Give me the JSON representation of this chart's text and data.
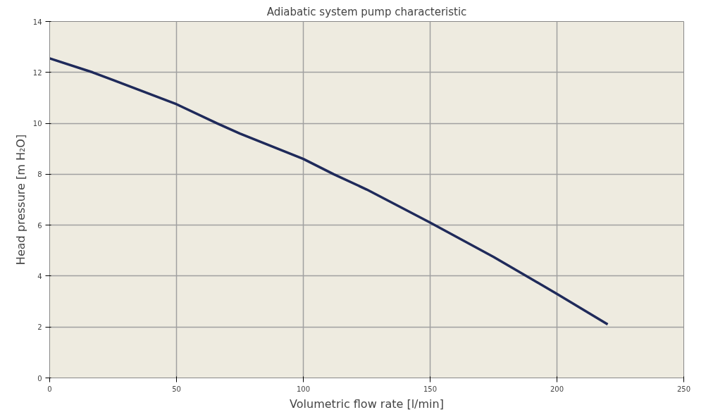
{
  "chart_data": {
    "type": "line",
    "title": "Adiabatic system pump characteristic",
    "xlabel": "Volumetric flow rate [l/min]",
    "ylabel": "Head pressure [m H₂O]",
    "x": [
      0,
      17,
      25,
      50,
      66,
      75,
      100,
      112,
      125,
      150,
      175,
      188,
      200,
      220
    ],
    "series": [
      {
        "color": "#1f2a5a",
        "values": [
          12.55,
          12,
          11.7,
          10.75,
          10,
          9.6,
          8.6,
          8,
          7.4,
          6.1,
          4.75,
          4,
          3.3,
          2.1
        ]
      }
    ],
    "xlim": [
      0,
      250
    ],
    "xticks": [
      0,
      50,
      100,
      150,
      200,
      250
    ],
    "ylim": [
      0,
      14
    ],
    "yticks": [
      0,
      2,
      4,
      6,
      8,
      10,
      12,
      14
    ],
    "grid": true,
    "marker": "none",
    "line_style": "solid"
  }
}
